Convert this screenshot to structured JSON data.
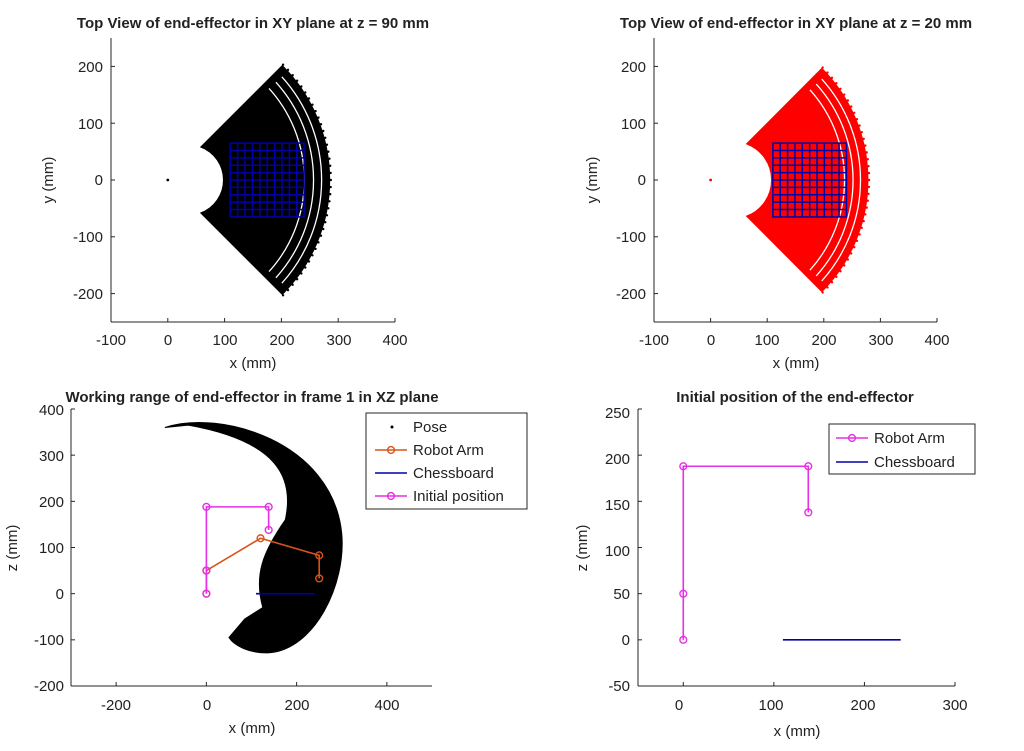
{
  "colors": {
    "pose_top": "#000000",
    "pose_bottom": "#ff0000",
    "chessboard": "#0000a6",
    "robot_arm": "#d95319",
    "initial": "#e62fe6"
  },
  "chart_data": [
    {
      "type": "scatter",
      "title": "Top View of end-effector in XY plane at z = 90 mm",
      "xlabel": "x (mm)",
      "ylabel": "y (mm)",
      "xlim": [
        -100,
        400
      ],
      "ylim": [
        -250,
        250
      ],
      "xticks": [
        "-100",
        "0",
        "100",
        "200",
        "300",
        "400"
      ],
      "yticks": [
        "200",
        "100",
        "0",
        "-100",
        "-200"
      ],
      "workspace_sector": {
        "r_inner": 82,
        "r_outer": 285,
        "inner_notch_radius": 62,
        "angle_deg": [
          -45,
          45
        ],
        "color": "#000000"
      },
      "origin_point": [
        0,
        0
      ],
      "chessboard_grid": {
        "x_range": [
          110,
          240
        ],
        "y_range": [
          -65,
          65
        ],
        "cells": 10
      }
    },
    {
      "type": "scatter",
      "title": "Top View of end-effector in XY plane at z = 20 mm",
      "xlabel": "x (mm)",
      "ylabel": "y (mm)",
      "xlim": [
        -100,
        400
      ],
      "ylim": [
        -250,
        250
      ],
      "xticks": [
        "-100",
        "0",
        "100",
        "200",
        "300",
        "400"
      ],
      "yticks": [
        "200",
        "100",
        "0",
        "-100",
        "-200"
      ],
      "workspace_sector": {
        "r_inner": 90,
        "r_outer": 278,
        "inner_notch_radius": 68,
        "angle_deg": [
          -45,
          45
        ],
        "color": "#ff0000"
      },
      "origin_point": [
        0,
        0
      ],
      "chessboard_grid": {
        "x_range": [
          110,
          240
        ],
        "y_range": [
          -65,
          65
        ],
        "cells": 10
      }
    },
    {
      "type": "line",
      "title": "Working range of end-effector in frame 1 in XZ plane",
      "xlabel": "x (mm)",
      "ylabel": "z (mm)",
      "xlim": [
        -300,
        500
      ],
      "ylim": [
        -200,
        400
      ],
      "xticks": [
        "-200",
        "0",
        "200",
        "400"
      ],
      "yticks": [
        "400",
        "300",
        "200",
        "100",
        "0",
        "-100",
        "-200"
      ],
      "legend": [
        "Pose",
        "Robot Arm",
        "Chessboard",
        "Initial position"
      ],
      "legend_position": "top-right",
      "series": [
        {
          "name": "Robot Arm",
          "x": [
            0,
            0,
            120,
            250,
            250
          ],
          "y": [
            0,
            50,
            120,
            83,
            33
          ]
        },
        {
          "name": "Chessboard",
          "x": [
            110,
            240
          ],
          "y": [
            0,
            0
          ]
        },
        {
          "name": "Initial position",
          "x": [
            0,
            0,
            0,
            138,
            138
          ],
          "y": [
            0,
            50,
            188,
            188,
            138
          ]
        }
      ]
    },
    {
      "type": "line",
      "title": "Initial position of the end-effector",
      "xlabel": "x (mm)",
      "ylabel": "z (mm)",
      "xlim": [
        -50,
        300
      ],
      "ylim": [
        -50,
        250
      ],
      "xticks": [
        "0",
        "100",
        "200",
        "300"
      ],
      "yticks": [
        "250",
        "200",
        "150",
        "100",
        "50",
        "0",
        "-50"
      ],
      "legend": [
        "Robot Arm",
        "Chessboard"
      ],
      "legend_position": "top-right",
      "series": [
        {
          "name": "Robot Arm",
          "x": [
            0,
            0,
            0,
            138,
            138
          ],
          "y": [
            0,
            50,
            188,
            188,
            138
          ]
        },
        {
          "name": "Chessboard",
          "x": [
            110,
            240
          ],
          "y": [
            0,
            0
          ]
        }
      ]
    }
  ]
}
